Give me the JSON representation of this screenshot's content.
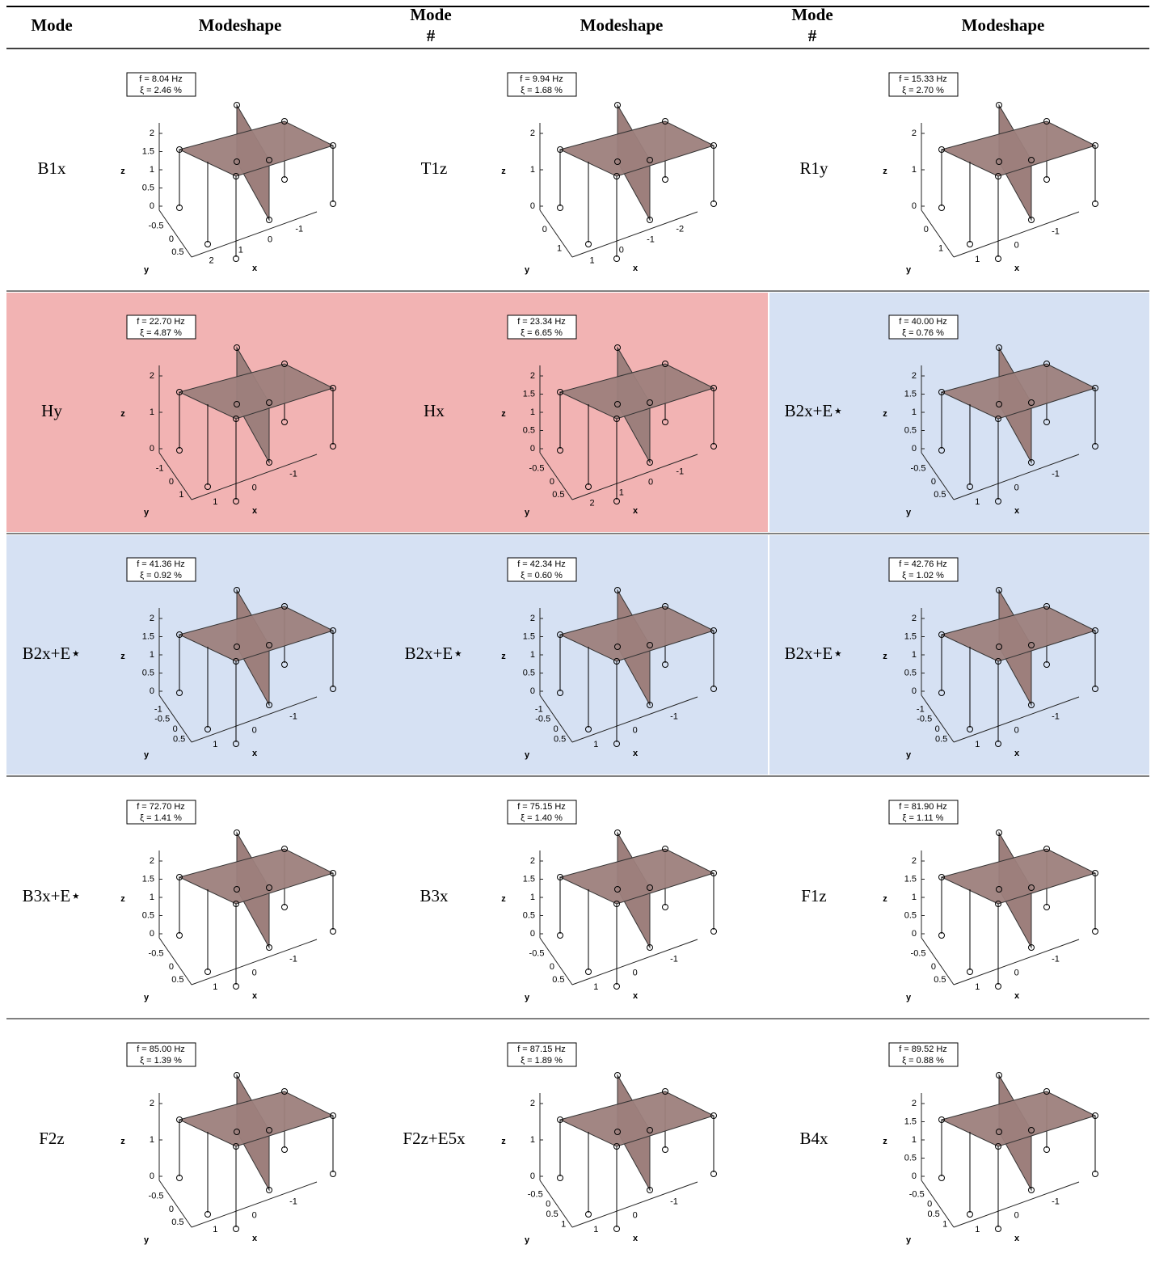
{
  "header": [
    [
      "Mode"
    ],
    [
      "Modeshape"
    ],
    [
      "Mode",
      "#"
    ],
    [
      "Modeshape"
    ],
    [
      "Mode",
      "#"
    ],
    [
      "Modeshape"
    ]
  ],
  "axes": {
    "z": "z",
    "y": "y",
    "x": "x"
  },
  "rows": [
    [
      {
        "mode": "B1x",
        "freq": "f = 8.04 Hz",
        "damping": "ξ = 2.46 %",
        "zticks": [
          2,
          1.5,
          1,
          0.5,
          0
        ],
        "yticks": [
          -0.5,
          0,
          0.5
        ],
        "xticks": [
          2,
          1,
          0,
          -1
        ]
      },
      {
        "mode": "T1z",
        "freq": "f = 9.94 Hz",
        "damping": "ξ = 1.68 %",
        "zticks": [
          2,
          1,
          0
        ],
        "yticks": [
          0,
          1
        ],
        "xticks": [
          1,
          0,
          -1,
          -2
        ]
      },
      {
        "mode": "R1y",
        "freq": "f = 15.33 Hz",
        "damping": "ξ = 2.70 %",
        "zticks": [
          2,
          1,
          0
        ],
        "yticks": [
          0,
          1
        ],
        "xticks": [
          1,
          0,
          -1
        ]
      }
    ],
    [
      {
        "mode": "Hy",
        "freq": "f = 22.70 Hz",
        "damping": "ξ = 4.87 %",
        "zticks": [
          2,
          1,
          0
        ],
        "yticks": [
          -1,
          0,
          1
        ],
        "xticks": [
          1,
          0,
          -1
        ],
        "color": "#f2b3b3"
      },
      {
        "mode": "Hx",
        "freq": "f = 23.34 Hz",
        "damping": "ξ = 6.65 %",
        "zticks": [
          2,
          1.5,
          1,
          0.5,
          0
        ],
        "yticks": [
          -0.5,
          0,
          0.5
        ],
        "xticks": [
          2,
          1,
          0,
          -1
        ],
        "color": "#f2b3b3"
      },
      {
        "mode": "B2x+E⋆",
        "freq": "f = 40.00 Hz",
        "damping": "ξ = 0.76 %",
        "zticks": [
          2,
          1.5,
          1,
          0.5,
          0
        ],
        "yticks": [
          -0.5,
          0,
          0.5
        ],
        "xticks": [
          1,
          0,
          -1
        ],
        "color": "#d6e1f3"
      }
    ],
    [
      {
        "mode": "B2x+E⋆",
        "freq": "f = 41.36 Hz",
        "damping": "ξ = 0.92 %",
        "zticks": [
          2,
          1.5,
          1,
          0.5,
          0
        ],
        "yticks": [
          -1,
          -0.5,
          0,
          0.5
        ],
        "xticks": [
          1,
          0,
          -1
        ],
        "color": "#d6e1f3"
      },
      {
        "mode": "B2x+E⋆",
        "freq": "f = 42.34 Hz",
        "damping": "ξ = 0.60 %",
        "zticks": [
          2,
          1.5,
          1,
          0.5,
          0
        ],
        "yticks": [
          -1,
          -0.5,
          0,
          0.5
        ],
        "xticks": [
          1,
          0,
          -1
        ],
        "color": "#d6e1f3"
      },
      {
        "mode": "B2x+E⋆",
        "freq": "f = 42.76 Hz",
        "damping": "ξ = 1.02 %",
        "zticks": [
          2,
          1.5,
          1,
          0.5,
          0
        ],
        "yticks": [
          -1,
          -0.5,
          0,
          0.5
        ],
        "xticks": [
          1,
          0,
          -1
        ],
        "color": "#d6e1f3"
      }
    ],
    [
      {
        "mode": "B3x+E⋆",
        "freq": "f = 72.70 Hz",
        "damping": "ξ = 1.41 %",
        "zticks": [
          2,
          1.5,
          1,
          0.5,
          0
        ],
        "yticks": [
          -0.5,
          0,
          0.5
        ],
        "xticks": [
          1,
          0,
          -1
        ]
      },
      {
        "mode": "B3x",
        "freq": "f = 75.15 Hz",
        "damping": "ξ = 1.40 %",
        "zticks": [
          2,
          1.5,
          1,
          0.5,
          0
        ],
        "yticks": [
          -0.5,
          0,
          0.5
        ],
        "xticks": [
          1,
          0,
          -1
        ]
      },
      {
        "mode": "F1z",
        "freq": "f = 81.90 Hz",
        "damping": "ξ = 1.11 %",
        "zticks": [
          2,
          1.5,
          1,
          0.5,
          0
        ],
        "yticks": [
          -0.5,
          0,
          0.5
        ],
        "xticks": [
          1,
          0,
          -1
        ]
      }
    ],
    [
      {
        "mode": "F2z",
        "freq": "f = 85.00 Hz",
        "damping": "ξ = 1.39 %",
        "zticks": [
          2,
          1,
          0
        ],
        "yticks": [
          -0.5,
          0,
          0.5
        ],
        "xticks": [
          1,
          0,
          -1
        ]
      },
      {
        "mode": "F2z+E5x",
        "freq": "f = 87.15 Hz",
        "damping": "ξ = 1.89 %",
        "zticks": [
          2,
          1,
          0
        ],
        "yticks": [
          -0.5,
          0,
          0.5,
          1
        ],
        "xticks": [
          1,
          0,
          -1
        ]
      },
      {
        "mode": "B4x",
        "freq": "f = 89.52 Hz",
        "damping": "ξ = 0.88 %",
        "zticks": [
          2,
          1.5,
          1,
          0.5,
          0
        ],
        "yticks": [
          -0.5,
          0,
          0.5,
          1
        ],
        "xticks": [
          1,
          0,
          -1
        ]
      }
    ]
  ]
}
